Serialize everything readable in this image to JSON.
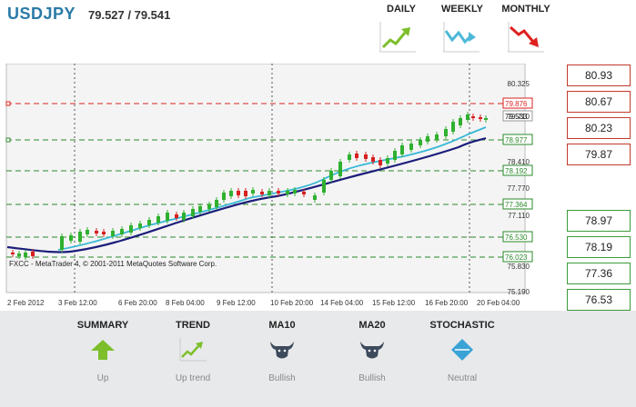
{
  "header": {
    "symbol": "USDJPY",
    "price": "79.527 / 79.541",
    "timeframes": [
      {
        "label": "DAILY",
        "icon": "uptrend-arrow-icon"
      },
      {
        "label": "WEEKLY",
        "icon": "zigzag-arrow-icon"
      },
      {
        "label": "MONTHLY",
        "icon": "downtrend-arrow-icon"
      }
    ]
  },
  "chart": {
    "copyright": "FXCC - MetaTrader 4, © 2001-2011 MetaQuotes Software Corp.",
    "y_ticks": [
      "80.325",
      "79.710",
      "78.410",
      "77.770",
      "77.110",
      "75.830",
      "75.190"
    ],
    "level_labels": {
      "r1": "79.876",
      "price": "79.533",
      "s1": "78.977",
      "s2": "78.192",
      "s3": "77.364",
      "s4": "76.530",
      "s5": "76.023"
    },
    "x_ticks": [
      "2 Feb 2012",
      "3 Feb 12:00",
      "6 Feb 20:00",
      "8 Feb 04:00",
      "9 Feb 12:00",
      "10 Feb 20:00",
      "14 Feb 04:00",
      "15 Feb 12:00",
      "16 Feb 20:00",
      "20 Feb 04:00"
    ]
  },
  "resistance": [
    "80.93",
    "80.67",
    "80.23",
    "79.87"
  ],
  "support": [
    "78.97",
    "78.19",
    "77.36",
    "76.53"
  ],
  "summary": [
    {
      "title": "SUMMARY",
      "icon": "up-arrow-icon",
      "value": "Up"
    },
    {
      "title": "TREND",
      "icon": "uptrend-icon",
      "value": "Up trend"
    },
    {
      "title": "MA10",
      "icon": "bull-icon",
      "value": "Bullish"
    },
    {
      "title": "MA20",
      "icon": "bull-icon",
      "value": "Bullish"
    },
    {
      "title": "STOCHASTIC",
      "icon": "neutral-diamond-icon",
      "value": "Neutral"
    }
  ]
}
